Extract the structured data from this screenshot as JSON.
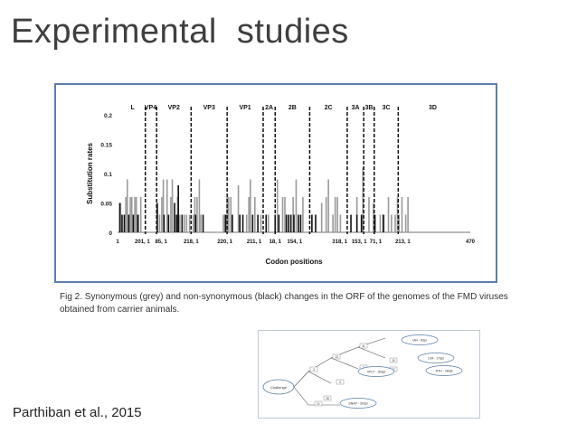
{
  "slide": {
    "title": "Experimental  studies",
    "caption": "Fig 2. Synonymous (grey) and non-synonymous (black) changes in the ORF of the genomes of the FMD viruses obtained from carrier animals.",
    "citation": "Parthiban et al., 2015"
  },
  "chart_data": {
    "type": "bar",
    "xlabel": "Codon positions",
    "ylabel": "Substitution rates",
    "ylim": [
      0,
      0.2
    ],
    "yticks": [
      "0",
      "0.05",
      "0.1",
      "0.15",
      "0.2"
    ],
    "regions": [
      "L",
      "VP4",
      "VP2",
      "VP3",
      "VP1",
      "2A",
      "2B",
      "2C",
      "3A",
      "3B",
      "3C",
      "3D"
    ],
    "position_labels": [
      "1",
      "201, 1",
      "85, 1",
      "218, 1",
      "220, 1",
      "211, 1",
      "18, 1",
      "154, 1",
      "318, 1",
      "153, 1",
      "71, 1",
      "213, 1",
      "470"
    ],
    "colors": {
      "synonymous": "#9a9a9a",
      "non_synonymous": "#111111"
    },
    "series": [
      {
        "name": "synonymous",
        "x": [
          3,
          10,
          12,
          16,
          18,
          22,
          24,
          27,
          30,
          55,
          58,
          60,
          65,
          70,
          72,
          76,
          79,
          82,
          88,
          91,
          95,
          100,
          102,
          105,
          108,
          110,
          140,
          142,
          145,
          147,
          150,
          160,
          171,
          174,
          176,
          182,
          190,
          200,
          212,
          219,
          222,
          233,
          237,
          246,
          271,
          277,
          280,
          286,
          289,
          292,
          296,
          318,
          326,
          334,
          340,
          349,
          354,
          360,
          364,
          369,
          372,
          374,
          378,
          383,
          386
        ],
        "values": [
          0.05,
          0.06,
          0.09,
          0.06,
          0.06,
          0.06,
          0.06,
          0.03,
          0.06,
          0.03,
          0.06,
          0.09,
          0.09,
          0.06,
          0.09,
          0.03,
          0.06,
          0.03,
          0.03,
          0.03,
          0.03,
          0.03,
          0.06,
          0.06,
          0.09,
          0.03,
          0.03,
          0.03,
          0.06,
          0.06,
          0.06,
          0.08,
          0.03,
          0.06,
          0.09,
          0.06,
          0.03,
          0.03,
          0.09,
          0.06,
          0.06,
          0.06,
          0.09,
          0.06,
          0.05,
          0.06,
          0.09,
          0.03,
          0.06,
          0.06,
          0.03,
          0.06,
          0.11,
          0.06,
          0.05,
          0.03,
          0.03,
          0.06,
          0.03,
          0.03,
          0.06,
          0.03,
          0.06,
          0.03,
          0.06
        ]
      },
      {
        "name": "non_synonymous",
        "x": [
          2,
          5,
          8,
          14,
          20,
          26,
          52,
          61,
          67,
          75,
          78,
          80,
          85,
          103,
          113,
          143,
          152,
          162,
          166,
          179,
          186,
          197,
          209,
          214,
          224,
          227,
          230,
          234,
          240,
          243,
          258,
          263,
          310,
          318,
          324,
          342,
          353
        ],
        "values": [
          0.05,
          0.03,
          0.03,
          0.03,
          0.03,
          0.03,
          0.05,
          0.03,
          0.03,
          0.05,
          0.03,
          0.08,
          0.03,
          0.03,
          0.03,
          0.03,
          0.03,
          0.03,
          0.03,
          0.03,
          0.03,
          0.03,
          0.03,
          0.03,
          0.03,
          0.03,
          0.03,
          0.03,
          0.03,
          0.03,
          0.03,
          0.03,
          0.03,
          0.03,
          0.03,
          0.03,
          0.03
        ]
      }
    ]
  },
  "tree": {
    "root_label": "Challenge",
    "leaves": [
      "IAH - 8dpi",
      "LVA - 17dpi",
      "NTH - 28dpi",
      "VPLY - 30dpi",
      "SNAP - 30dpi"
    ],
    "branch_labels": [
      "3",
      "13",
      "11",
      "7",
      "3",
      "10",
      "17",
      "21",
      "28"
    ]
  }
}
